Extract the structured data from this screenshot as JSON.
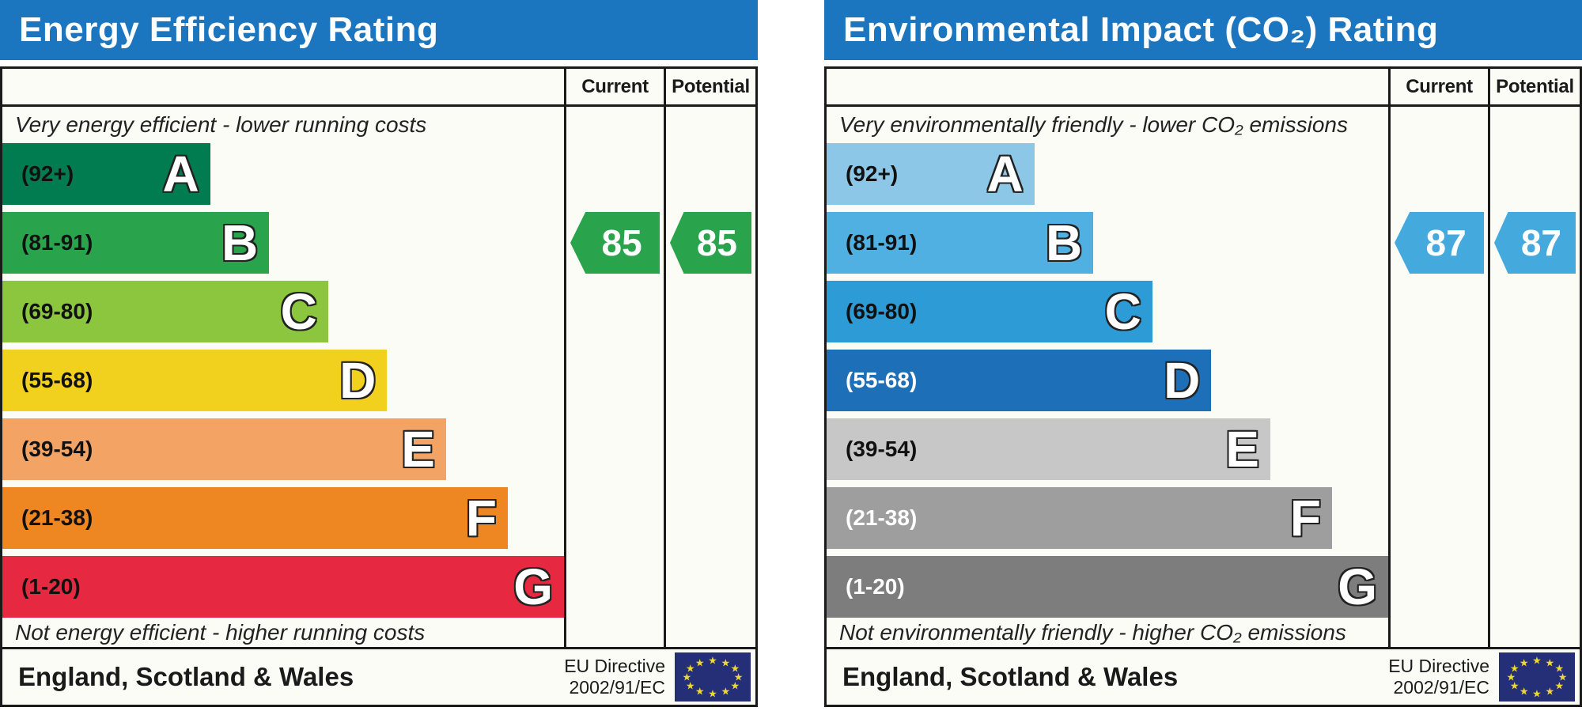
{
  "panels": [
    {
      "title": "Energy Efficiency Rating",
      "header": {
        "current": "Current",
        "potential": "Potential"
      },
      "top_caption": "Very energy efficient - lower running costs",
      "bottom_caption": "Not energy efficient - higher running costs",
      "bands": [
        {
          "letter": "A",
          "range": "(92+)",
          "color": "#007c50",
          "label_color": "#111111",
          "width_pct": 37
        },
        {
          "letter": "B",
          "range": "(81-91)",
          "color": "#2aa44c",
          "label_color": "#111111",
          "width_pct": 47.5
        },
        {
          "letter": "C",
          "range": "(69-80)",
          "color": "#8cc63e",
          "label_color": "#111111",
          "width_pct": 58
        },
        {
          "letter": "D",
          "range": "(55-68)",
          "color": "#f2d01e",
          "label_color": "#111111",
          "width_pct": 68.5
        },
        {
          "letter": "E",
          "range": "(39-54)",
          "color": "#f3a464",
          "label_color": "#111111",
          "width_pct": 79
        },
        {
          "letter": "F",
          "range": "(21-38)",
          "color": "#ee8622",
          "label_color": "#111111",
          "width_pct": 90
        },
        {
          "letter": "G",
          "range": "(1-20)",
          "color": "#e62841",
          "label_color": "#111111",
          "width_pct": 100
        }
      ],
      "current": {
        "value": "85",
        "band_index": 1,
        "color": "#2aa44c"
      },
      "potential": {
        "value": "85",
        "band_index": 1,
        "color": "#2aa44c"
      },
      "footer": {
        "region": "England, Scotland & Wales",
        "directive_line1": "EU Directive",
        "directive_line2": "2002/91/EC"
      }
    },
    {
      "title": "Environmental Impact (CO₂) Rating",
      "header": {
        "current": "Current",
        "potential": "Potential"
      },
      "top_caption": "Very environmentally friendly - lower CO₂ emissions",
      "bottom_caption": "Not environmentally friendly - higher CO₂ emissions",
      "bands": [
        {
          "letter": "A",
          "range": "(92+)",
          "color": "#8dc7e8",
          "label_color": "#111111",
          "width_pct": 37
        },
        {
          "letter": "B",
          "range": "(81-91)",
          "color": "#4fb0e1",
          "label_color": "#111111",
          "width_pct": 47.5
        },
        {
          "letter": "C",
          "range": "(69-80)",
          "color": "#2d9cd6",
          "label_color": "#111111",
          "width_pct": 58
        },
        {
          "letter": "D",
          "range": "(55-68)",
          "color": "#1d70b8",
          "label_color": "#ffffff",
          "width_pct": 68.5
        },
        {
          "letter": "E",
          "range": "(39-54)",
          "color": "#c7c7c7",
          "label_color": "#111111",
          "width_pct": 79
        },
        {
          "letter": "F",
          "range": "(21-38)",
          "color": "#9e9e9e",
          "label_color": "#ffffff",
          "width_pct": 90
        },
        {
          "letter": "G",
          "range": "(1-20)",
          "color": "#7d7d7d",
          "label_color": "#ffffff",
          "width_pct": 100
        }
      ],
      "current": {
        "value": "87",
        "band_index": 1,
        "color": "#44aadd"
      },
      "potential": {
        "value": "87",
        "band_index": 1,
        "color": "#44aadd"
      },
      "footer": {
        "region": "England, Scotland & Wales",
        "directive_line1": "EU Directive",
        "directive_line2": "2002/91/EC"
      }
    }
  ],
  "eu_flag": {
    "background": "#252f78",
    "star_color": "#f0d832",
    "star_count": 12,
    "star_glyph": "★"
  },
  "colors": {
    "header_blue": "#1b75bf",
    "border": "#1a1a1a"
  },
  "chart_data": [
    {
      "type": "bar",
      "title": "Energy Efficiency Rating",
      "categories": [
        "A (92+)",
        "B (81-91)",
        "C (69-80)",
        "D (55-68)",
        "E (39-54)",
        "F (21-38)",
        "G (1-20)"
      ],
      "values": [
        37,
        47.5,
        58,
        68.5,
        79,
        90,
        100
      ],
      "value_note": "band bar width as % of ladder area; fixed EPC scale",
      "band_colors": [
        "#007c50",
        "#2aa44c",
        "#8cc63e",
        "#f2d01e",
        "#f3a464",
        "#ee8622",
        "#e62841"
      ],
      "current": 85,
      "current_band": "B",
      "potential": 85,
      "potential_band": "B",
      "top_caption": "Very energy efficient - lower running costs",
      "bottom_caption": "Not energy efficient - higher running costs",
      "footer": "England, Scotland & Wales — EU Directive 2002/91/EC"
    },
    {
      "type": "bar",
      "title": "Environmental Impact (CO₂) Rating",
      "categories": [
        "A (92+)",
        "B (81-91)",
        "C (69-80)",
        "D (55-68)",
        "E (39-54)",
        "F (21-38)",
        "G (1-20)"
      ],
      "values": [
        37,
        47.5,
        58,
        68.5,
        79,
        90,
        100
      ],
      "value_note": "band bar width as % of ladder area; fixed EPC scale",
      "band_colors": [
        "#8dc7e8",
        "#4fb0e1",
        "#2d9cd6",
        "#1d70b8",
        "#c7c7c7",
        "#9e9e9e",
        "#7d7d7d"
      ],
      "current": 87,
      "current_band": "B",
      "potential": 87,
      "potential_band": "B",
      "top_caption": "Very environmentally friendly - lower CO₂ emissions",
      "bottom_caption": "Not environmentally friendly - higher CO₂ emissions",
      "footer": "England, Scotland & Wales — EU Directive 2002/91/EC"
    }
  ]
}
